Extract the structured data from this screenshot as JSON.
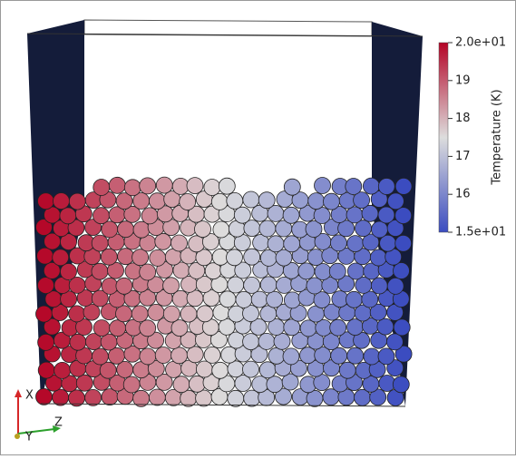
{
  "colorbar": {
    "title": "Temperature (K)",
    "range": [
      15,
      20
    ],
    "ticks": [
      {
        "value": 20,
        "label": "2.0e+01"
      },
      19,
      18,
      17,
      16,
      {
        "value": 15,
        "label": "1.5e+01"
      }
    ],
    "colors": [
      "#3b4cc0",
      "#dddddd",
      "#b40426"
    ]
  },
  "axes_triad": {
    "labels": [
      "X",
      "Y",
      "Z"
    ]
  }
}
